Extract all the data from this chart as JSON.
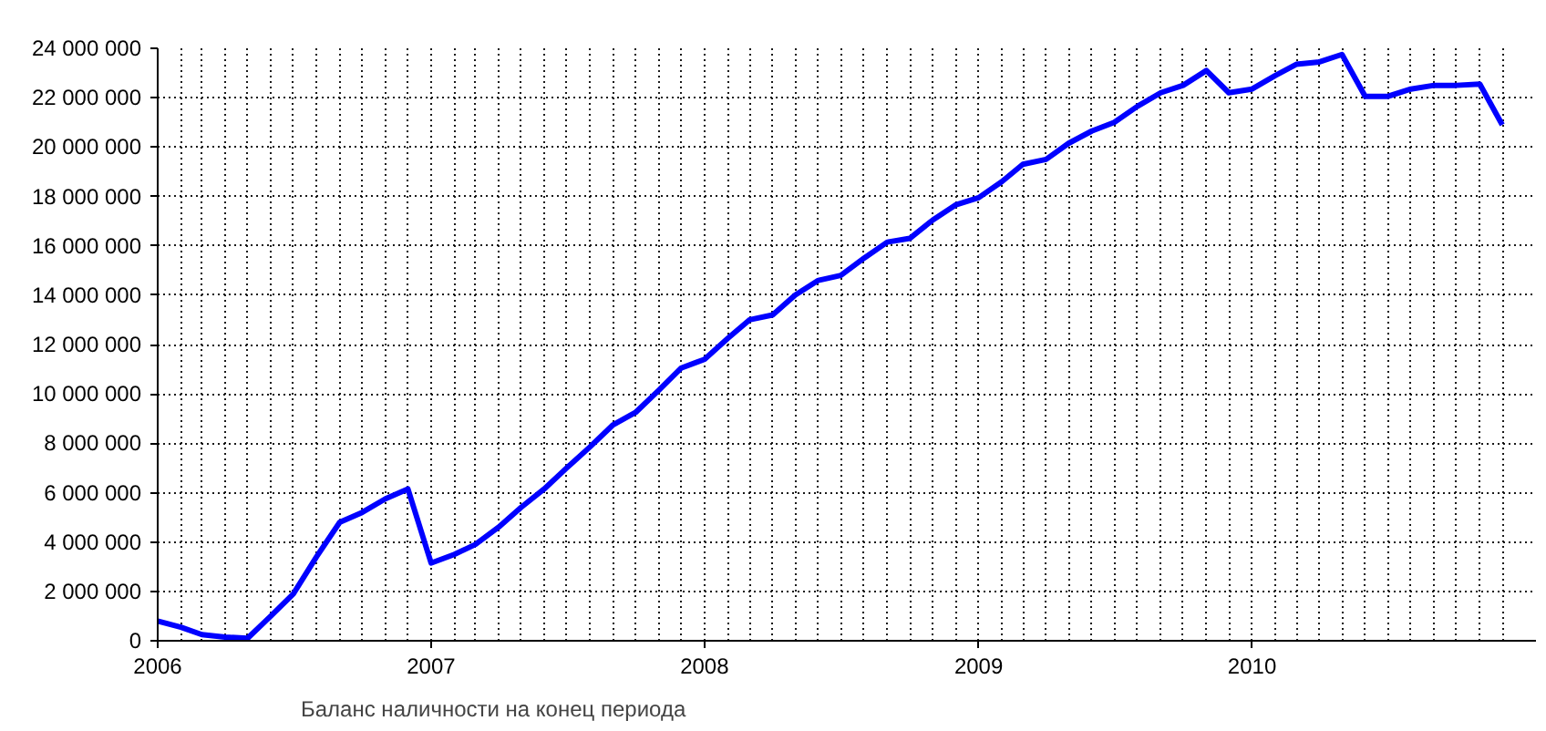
{
  "chart_data": {
    "type": "line",
    "x": [
      "2006-01",
      "2006-02",
      "2006-03",
      "2006-04",
      "2006-05",
      "2006-06",
      "2006-07",
      "2006-08",
      "2006-09",
      "2006-10",
      "2006-11",
      "2006-12",
      "2007-01",
      "2007-02",
      "2007-03",
      "2007-04",
      "2007-05",
      "2007-06",
      "2007-07",
      "2007-08",
      "2007-09",
      "2007-10",
      "2007-11",
      "2007-12",
      "2008-01",
      "2008-02",
      "2008-03",
      "2008-04",
      "2008-05",
      "2008-06",
      "2008-07",
      "2008-08",
      "2008-09",
      "2008-10",
      "2008-11",
      "2008-12",
      "2009-01",
      "2009-02",
      "2009-03",
      "2009-04",
      "2009-05",
      "2009-06",
      "2009-07",
      "2009-08",
      "2009-09",
      "2009-10",
      "2009-11",
      "2009-12",
      "2010-01",
      "2010-02",
      "2010-03",
      "2010-04",
      "2010-05",
      "2010-06",
      "2010-07",
      "2010-08",
      "2010-09",
      "2010-10",
      "2010-11",
      "2010-12"
    ],
    "series": [
      {
        "name": "Баланс наличности на конец периода",
        "color": "#0000ff",
        "values": [
          800000,
          550000,
          250000,
          150000,
          100000,
          1000000,
          1900000,
          3400000,
          4800000,
          5200000,
          5750000,
          6150000,
          3150000,
          3500000,
          3900000,
          4600000,
          5400000,
          6150000,
          7000000,
          7850000,
          8750000,
          9250000,
          10150000,
          11050000,
          11400000,
          12250000,
          13000000,
          13200000,
          14000000,
          14600000,
          14800000,
          15500000,
          16150000,
          16300000,
          17050000,
          17650000,
          17950000,
          18600000,
          19300000,
          19500000,
          20150000,
          20650000,
          21000000,
          21650000,
          22200000,
          22500000,
          23100000,
          22200000,
          22350000,
          22900000,
          23350000,
          23450000,
          23750000,
          22050000,
          22050000,
          22350000,
          22500000,
          22500000,
          22550000,
          20900000
        ]
      }
    ],
    "xlim": [
      "2006-01",
      "2011-01-15"
    ],
    "xticks": [
      "2006",
      "2007",
      "2008",
      "2009",
      "2010"
    ],
    "ylim": [
      0,
      24000000
    ],
    "yticks": [
      {
        "value": 0,
        "label": "0"
      },
      {
        "value": 2000000,
        "label": "2 000 000"
      },
      {
        "value": 4000000,
        "label": "4 000 000"
      },
      {
        "value": 6000000,
        "label": "6 000 000"
      },
      {
        "value": 8000000,
        "label": "8 000 000"
      },
      {
        "value": 10000000,
        "label": "10 000 000"
      },
      {
        "value": 12000000,
        "label": "12 000 000"
      },
      {
        "value": 14000000,
        "label": "14 000 000"
      },
      {
        "value": 16000000,
        "label": "16 000 000"
      },
      {
        "value": 18000000,
        "label": "18 000 000"
      },
      {
        "value": 20000000,
        "label": "20 000 000"
      },
      {
        "value": 22000000,
        "label": "22 000 000"
      },
      {
        "value": 24000000,
        "label": "24 000 000"
      }
    ],
    "grid": true,
    "legend": "bottom left",
    "line_style": "solid"
  }
}
